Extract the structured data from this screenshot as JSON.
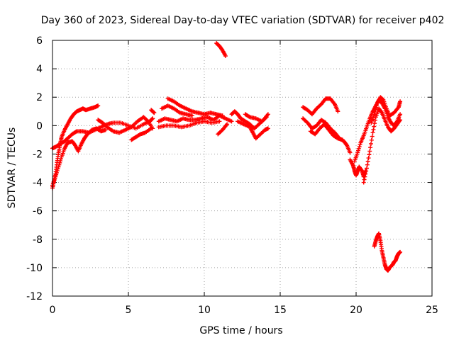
{
  "chart_data": {
    "type": "scatter",
    "title": "Day 360 of 2023, Sidereal Day-to-day VTEC variation (SDTVAR) for receiver p402",
    "xlabel": "GPS time / hours",
    "ylabel": "SDTVAR / TECUs",
    "xlim": [
      0,
      25
    ],
    "ylim": [
      -12,
      6
    ],
    "xticks": [
      0,
      5,
      10,
      15,
      20,
      25
    ],
    "yticks": [
      -12,
      -10,
      -8,
      -6,
      -4,
      -2,
      0,
      2,
      4,
      6
    ],
    "grid": true,
    "marker": "plus",
    "series_color": "#ff0000",
    "series": [
      {
        "name": "SDTVAR",
        "segments": [
          [
            [
              0.0,
              -4.4
            ],
            [
              0.1,
              -3.9
            ],
            [
              0.2,
              -3.4
            ],
            [
              0.3,
              -2.6
            ],
            [
              0.4,
              -1.9
            ],
            [
              0.5,
              -1.3
            ],
            [
              0.6,
              -0.8
            ],
            [
              0.8,
              -0.3
            ],
            [
              1.0,
              0.1
            ],
            [
              1.2,
              0.5
            ],
            [
              1.4,
              0.8
            ],
            [
              1.6,
              1.0
            ],
            [
              1.8,
              1.1
            ],
            [
              2.0,
              1.2
            ],
            [
              2.2,
              1.1
            ],
            [
              2.5,
              1.2
            ],
            [
              2.8,
              1.3
            ],
            [
              3.0,
              1.4
            ]
          ],
          [
            [
              0.0,
              -4.2
            ],
            [
              0.2,
              -3.6
            ],
            [
              0.4,
              -2.9
            ],
            [
              0.6,
              -2.2
            ],
            [
              0.8,
              -1.6
            ],
            [
              1.0,
              -1.2
            ],
            [
              1.3,
              -1.1
            ],
            [
              1.5,
              -1.4
            ],
            [
              1.7,
              -1.8
            ],
            [
              1.9,
              -1.3
            ],
            [
              2.1,
              -0.9
            ],
            [
              2.3,
              -0.6
            ],
            [
              2.6,
              -0.3
            ],
            [
              2.9,
              -0.2
            ],
            [
              3.2,
              -0.4
            ],
            [
              3.5,
              -0.3
            ]
          ],
          [
            [
              0.0,
              -1.6
            ],
            [
              0.2,
              -1.5
            ],
            [
              0.5,
              -1.3
            ],
            [
              0.8,
              -1.1
            ],
            [
              1.0,
              -0.9
            ],
            [
              1.3,
              -0.6
            ],
            [
              1.6,
              -0.4
            ],
            [
              2.0,
              -0.4
            ],
            [
              2.4,
              -0.5
            ],
            [
              2.8,
              -0.3
            ],
            [
              3.2,
              -0.1
            ],
            [
              3.6,
              0.1
            ],
            [
              4.0,
              0.2
            ],
            [
              4.5,
              0.2
            ],
            [
              5.0,
              0.0
            ],
            [
              5.5,
              -0.2
            ],
            [
              6.0,
              0.1
            ],
            [
              6.4,
              0.3
            ],
            [
              6.6,
              0.5
            ]
          ],
          [
            [
              3.0,
              0.4
            ],
            [
              3.3,
              0.2
            ],
            [
              3.6,
              -0.1
            ],
            [
              4.0,
              -0.4
            ],
            [
              4.4,
              -0.5
            ],
            [
              4.8,
              -0.3
            ],
            [
              5.2,
              -0.1
            ],
            [
              5.6,
              0.3
            ],
            [
              6.0,
              0.6
            ],
            [
              6.3,
              0.3
            ],
            [
              6.6,
              -0.2
            ]
          ],
          [
            [
              5.2,
              -1.0
            ],
            [
              5.5,
              -0.8
            ],
            [
              5.8,
              -0.6
            ],
            [
              6.1,
              -0.5
            ],
            [
              6.5,
              -0.2
            ]
          ],
          [
            [
              6.5,
              1.1
            ],
            [
              6.7,
              0.9
            ]
          ],
          [
            [
              7.0,
              0.3
            ],
            [
              7.4,
              0.5
            ],
            [
              7.8,
              0.4
            ],
            [
              8.2,
              0.3
            ],
            [
              8.6,
              0.5
            ],
            [
              9.0,
              0.4
            ],
            [
              9.4,
              0.4
            ],
            [
              9.8,
              0.5
            ],
            [
              10.2,
              0.6
            ],
            [
              10.6,
              0.4
            ],
            [
              11.0,
              0.7
            ],
            [
              11.4,
              0.5
            ],
            [
              11.8,
              0.3
            ]
          ],
          [
            [
              7.0,
              -0.1
            ],
            [
              7.5,
              0.0
            ],
            [
              8.0,
              0.0
            ],
            [
              8.5,
              -0.1
            ],
            [
              9.0,
              0.0
            ],
            [
              9.5,
              0.2
            ],
            [
              10.0,
              0.3
            ],
            [
              10.5,
              0.2
            ],
            [
              11.0,
              0.3
            ]
          ],
          [
            [
              7.6,
              1.9
            ],
            [
              8.0,
              1.7
            ],
            [
              8.4,
              1.4
            ],
            [
              8.8,
              1.2
            ],
            [
              9.2,
              1.0
            ],
            [
              9.6,
              0.9
            ],
            [
              10.0,
              0.8
            ],
            [
              10.4,
              0.9
            ],
            [
              10.8,
              0.8
            ],
            [
              11.2,
              0.7
            ]
          ],
          [
            [
              7.2,
              1.2
            ],
            [
              7.6,
              1.4
            ],
            [
              8.0,
              1.2
            ],
            [
              8.4,
              0.9
            ],
            [
              8.8,
              0.8
            ],
            [
              9.2,
              0.7
            ]
          ],
          [
            [
              11.5,
              0.1
            ],
            [
              11.2,
              -0.3
            ],
            [
              10.9,
              -0.6
            ]
          ],
          [
            [
              10.8,
              5.8
            ],
            [
              11.0,
              5.6
            ],
            [
              11.2,
              5.3
            ],
            [
              11.4,
              4.9
            ]
          ],
          [
            [
              11.8,
              0.8
            ],
            [
              12.0,
              1.0
            ],
            [
              12.2,
              0.8
            ],
            [
              12.4,
              0.5
            ],
            [
              12.7,
              0.3
            ],
            [
              13.0,
              0.1
            ],
            [
              13.3,
              -0.2
            ],
            [
              13.6,
              0.1
            ],
            [
              13.9,
              0.4
            ],
            [
              14.2,
              0.8
            ]
          ],
          [
            [
              12.2,
              0.3
            ],
            [
              12.6,
              0.1
            ],
            [
              13.0,
              -0.1
            ],
            [
              13.2,
              -0.5
            ],
            [
              13.4,
              -0.9
            ],
            [
              13.7,
              -0.6
            ],
            [
              14.0,
              -0.3
            ],
            [
              14.2,
              -0.2
            ]
          ],
          [
            [
              12.7,
              0.8
            ],
            [
              13.0,
              0.6
            ],
            [
              13.4,
              0.5
            ],
            [
              13.8,
              0.3
            ],
            [
              14.1,
              0.6
            ]
          ],
          [
            [
              16.5,
              1.3
            ],
            [
              16.8,
              1.1
            ],
            [
              17.1,
              0.8
            ],
            [
              17.4,
              1.2
            ],
            [
              17.7,
              1.5
            ],
            [
              18.0,
              1.9
            ],
            [
              18.3,
              1.9
            ],
            [
              18.6,
              1.5
            ],
            [
              18.8,
              1.0
            ]
          ],
          [
            [
              16.5,
              0.5
            ],
            [
              16.8,
              0.2
            ],
            [
              17.1,
              -0.2
            ],
            [
              17.4,
              0.0
            ],
            [
              17.7,
              0.4
            ],
            [
              18.0,
              0.2
            ],
            [
              18.3,
              -0.2
            ],
            [
              18.6,
              -0.5
            ],
            [
              18.9,
              -0.9
            ],
            [
              19.2,
              -1.1
            ],
            [
              19.4,
              -1.4
            ],
            [
              19.6,
              -1.9
            ]
          ],
          [
            [
              17.0,
              -0.4
            ],
            [
              17.3,
              -0.6
            ],
            [
              17.6,
              -0.2
            ],
            [
              17.9,
              0.1
            ],
            [
              18.2,
              -0.3
            ],
            [
              18.5,
              -0.7
            ],
            [
              18.8,
              -0.9
            ],
            [
              19.1,
              -1.0
            ]
          ],
          [
            [
              19.6,
              -2.4
            ],
            [
              19.8,
              -2.8
            ],
            [
              19.9,
              -3.2
            ],
            [
              20.0,
              -3.5
            ],
            [
              20.1,
              -3.2
            ],
            [
              20.2,
              -2.9
            ],
            [
              20.4,
              -3.2
            ],
            [
              20.5,
              -3.6
            ],
            [
              20.6,
              -3.2
            ]
          ],
          [
            [
              19.9,
              -2.5
            ],
            [
              20.1,
              -1.9
            ],
            [
              20.3,
              -1.2
            ],
            [
              20.5,
              -0.7
            ],
            [
              20.7,
              -0.1
            ],
            [
              20.9,
              0.5
            ],
            [
              21.1,
              1.0
            ],
            [
              21.3,
              1.4
            ],
            [
              21.5,
              1.8
            ],
            [
              21.7,
              1.6
            ],
            [
              21.9,
              1.2
            ],
            [
              22.1,
              0.6
            ],
            [
              22.3,
              0.2
            ],
            [
              22.5,
              0.0
            ],
            [
              22.7,
              0.3
            ],
            [
              22.9,
              0.8
            ]
          ],
          [
            [
              20.5,
              -4.0
            ],
            [
              20.7,
              -3.0
            ],
            [
              20.9,
              -1.8
            ],
            [
              21.1,
              -0.5
            ],
            [
              21.3,
              0.6
            ],
            [
              21.5,
              1.2
            ],
            [
              21.7,
              0.9
            ],
            [
              21.9,
              0.4
            ],
            [
              22.1,
              -0.1
            ],
            [
              22.3,
              -0.4
            ],
            [
              22.5,
              -0.2
            ],
            [
              22.7,
              0.1
            ],
            [
              22.9,
              0.4
            ]
          ],
          [
            [
              21.0,
              0.2
            ],
            [
              21.2,
              0.8
            ],
            [
              21.4,
              1.6
            ],
            [
              21.6,
              2.0
            ],
            [
              21.8,
              1.8
            ],
            [
              22.0,
              1.2
            ],
            [
              22.2,
              0.7
            ],
            [
              22.5,
              0.9
            ],
            [
              22.8,
              1.3
            ],
            [
              22.9,
              1.7
            ]
          ],
          [
            [
              21.2,
              -8.5
            ],
            [
              21.3,
              -8.1
            ],
            [
              21.4,
              -7.8
            ],
            [
              21.5,
              -7.6
            ],
            [
              21.6,
              -8.1
            ],
            [
              21.7,
              -8.8
            ],
            [
              21.8,
              -9.3
            ],
            [
              21.9,
              -9.8
            ],
            [
              22.0,
              -10.1
            ],
            [
              22.1,
              -10.2
            ],
            [
              22.2,
              -10.0
            ],
            [
              22.4,
              -9.8
            ],
            [
              22.5,
              -9.6
            ],
            [
              22.6,
              -9.5
            ],
            [
              22.7,
              -9.2
            ],
            [
              22.8,
              -9.0
            ],
            [
              22.9,
              -8.9
            ]
          ]
        ]
      }
    ]
  }
}
